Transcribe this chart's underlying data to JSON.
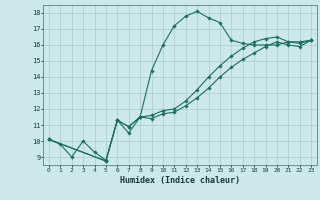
{
  "xlabel": "Humidex (Indice chaleur)",
  "xlim": [
    -0.5,
    23.5
  ],
  "ylim": [
    8.5,
    18.5
  ],
  "xticks": [
    0,
    1,
    2,
    3,
    4,
    5,
    6,
    7,
    8,
    9,
    10,
    11,
    12,
    13,
    14,
    15,
    16,
    17,
    18,
    19,
    20,
    21,
    22,
    23
  ],
  "yticks": [
    9,
    10,
    11,
    12,
    13,
    14,
    15,
    16,
    17,
    18
  ],
  "line_color": "#1a6e62",
  "bg_color": "#cce8e8",
  "grid_color": "#aacccc",
  "line1_x": [
    0,
    1,
    2,
    3,
    4,
    5,
    6,
    7,
    8,
    9,
    10,
    11,
    12,
    13,
    14,
    15,
    16,
    17,
    18,
    19,
    20,
    21,
    22,
    23
  ],
  "line1_y": [
    10.1,
    9.8,
    9.0,
    10.0,
    9.3,
    8.8,
    11.3,
    10.5,
    11.5,
    14.4,
    16.0,
    17.2,
    17.8,
    18.1,
    17.7,
    17.4,
    16.3,
    16.1,
    16.0,
    16.0,
    16.0,
    16.2,
    16.2,
    16.3
  ],
  "line2_x": [
    0,
    5,
    6,
    7,
    8,
    9,
    10,
    11,
    12,
    13,
    14,
    15,
    16,
    17,
    18,
    19,
    20,
    21,
    22,
    23
  ],
  "line2_y": [
    10.1,
    8.75,
    11.3,
    10.9,
    11.5,
    11.6,
    11.9,
    12.0,
    12.5,
    13.2,
    14.0,
    14.7,
    15.3,
    15.8,
    16.2,
    16.4,
    16.5,
    16.2,
    16.1,
    16.3
  ],
  "line3_x": [
    0,
    5,
    6,
    7,
    8,
    9,
    10,
    11,
    12,
    13,
    14,
    15,
    16,
    17,
    18,
    19,
    20,
    21,
    22,
    23
  ],
  "line3_y": [
    10.1,
    8.75,
    11.3,
    10.9,
    11.5,
    11.4,
    11.7,
    11.8,
    12.2,
    12.7,
    13.3,
    14.0,
    14.6,
    15.1,
    15.5,
    15.9,
    16.2,
    16.0,
    15.9,
    16.3
  ]
}
